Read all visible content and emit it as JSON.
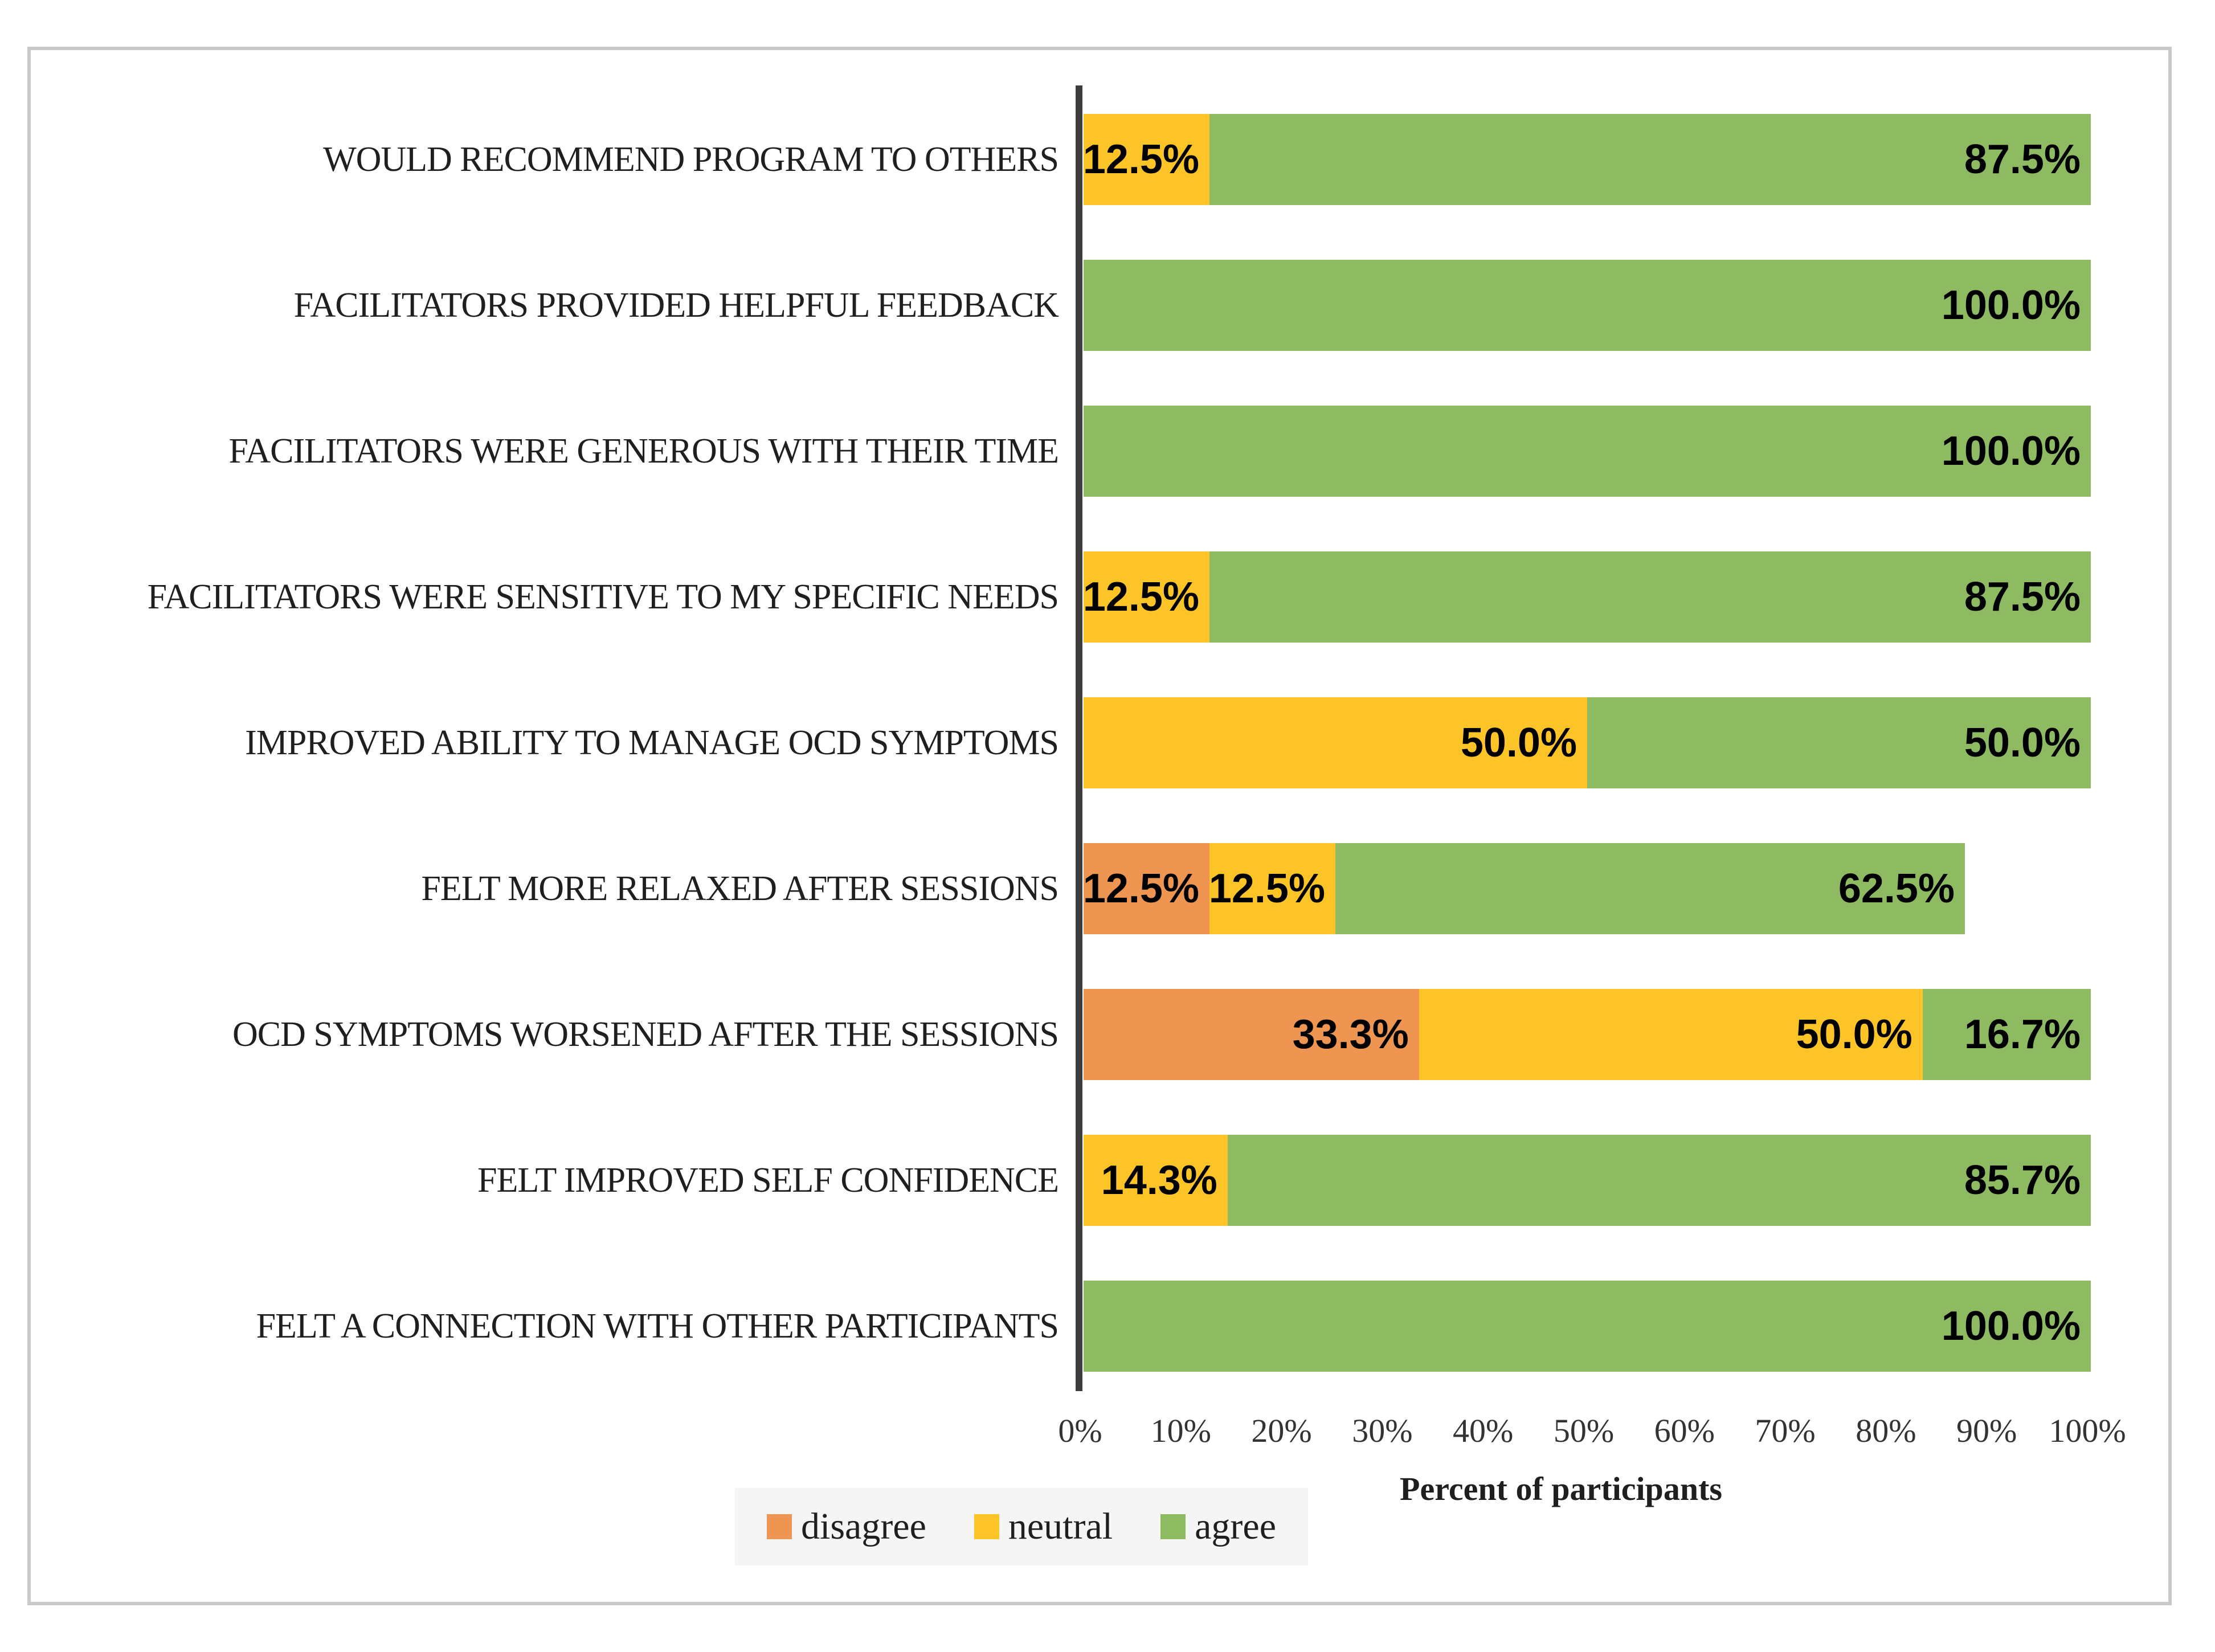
{
  "chart_data": {
    "type": "bar",
    "orientation": "horizontal-stacked",
    "title": "",
    "xlabel": "Percent of participants",
    "ylabel": "",
    "xlim": [
      0,
      100
    ],
    "x_ticks": [
      "0%",
      "10%",
      "20%",
      "30%",
      "40%",
      "50%",
      "60%",
      "70%",
      "80%",
      "90%",
      "100%"
    ],
    "grid": false,
    "legend_position": "bottom",
    "categories": [
      "WOULD RECOMMEND PROGRAM TO OTHERS",
      "FACILITATORS PROVIDED HELPFUL FEEDBACK",
      "FACILITATORS WERE GENEROUS WITH THEIR TIME",
      "FACILITATORS WERE SENSITIVE TO MY SPECIFIC NEEDS",
      "IMPROVED ABILITY TO MANAGE OCD SYMPTOMS",
      "FELT MORE RELAXED AFTER SESSIONS",
      "OCD SYMPTOMS WORSENED AFTER THE SESSIONS",
      "FELT IMPROVED SELF CONFIDENCE",
      "FELT A CONNECTION WITH OTHER PARTICIPANTS"
    ],
    "series": [
      {
        "name": "disagree",
        "color": "#EE9552",
        "values": [
          0,
          0,
          0,
          0,
          0,
          12.5,
          33.3,
          0,
          0
        ]
      },
      {
        "name": "neutral",
        "color": "#FDC428",
        "values": [
          12.5,
          0,
          0,
          12.5,
          50.0,
          12.5,
          50.0,
          14.3,
          0
        ]
      },
      {
        "name": "agree",
        "color": "#8EBB61",
        "values": [
          87.5,
          100.0,
          100.0,
          87.5,
          50.0,
          62.5,
          16.7,
          85.7,
          100.0
        ]
      }
    ],
    "data_label_format": "one-decimal-percent",
    "visible_data_labels": [
      [
        "12.5%",
        "87.5%"
      ],
      [
        "100.0%"
      ],
      [
        "100.0%"
      ],
      [
        "12.5%",
        "87.5%"
      ],
      [
        "50.0%",
        "50.0%"
      ],
      [
        "12.5%",
        "12.5%",
        "62.5%"
      ],
      [
        "33.3%",
        "50.0%",
        "16.7%"
      ],
      [
        "14.3%",
        "85.7%"
      ],
      [
        "100.0%"
      ]
    ]
  },
  "legend": {
    "items": [
      {
        "label": "disagree",
        "color": "#EE9552"
      },
      {
        "label": "neutral",
        "color": "#FDC428"
      },
      {
        "label": "agree",
        "color": "#8EBB61"
      }
    ]
  },
  "colors": {
    "disagree": "#EE9552",
    "neutral": "#FDC428",
    "agree": "#8EBB61",
    "axis_line": "#3d3d3d",
    "frame_border": "#c9c9c9",
    "legend_background": "#f5f5f5",
    "text": "#1f1f1f",
    "data_label_text": "#000000"
  }
}
